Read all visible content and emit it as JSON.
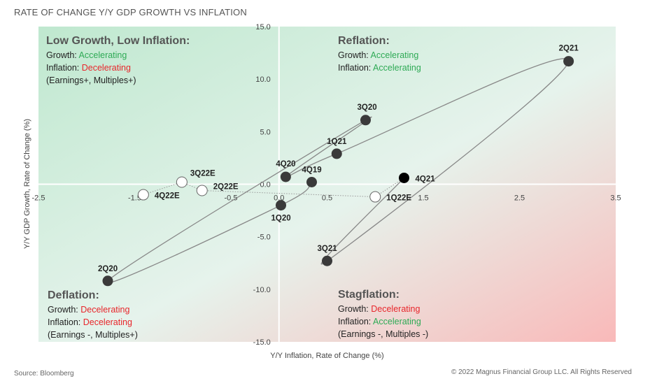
{
  "title": "RATE OF CHANGE Y/Y GDP GROWTH VS INFLATION",
  "source": "Source: Bloomberg",
  "copyright": "© 2022 Magnus Financial Group LLC. All Rights Reserved",
  "colors": {
    "growth_accel": "#2eaa55",
    "decel": "#e8262b",
    "bg_top_left": "#bfe8cf",
    "bg_bottom_right": "#f9b9b9"
  },
  "quadrants": [
    {
      "title": "Low Growth, Low Inflation:",
      "growth_label": "Growth: ",
      "growth": "Accelerating",
      "inflation_label": "Inflation: ",
      "inflation": "Decelerating",
      "note": "(Earnings+, Multiples+)"
    },
    {
      "title": "Reflation:",
      "growth_label": "Growth: ",
      "growth": "Accelerating",
      "inflation_label": "Inflation: ",
      "inflation": "Accelerating",
      "note": ""
    },
    {
      "title": "Deflation:",
      "growth_label": "Growth: ",
      "growth": "Decelerating",
      "inflation_label": "Inflation: ",
      "inflation": "Decelerating",
      "note": "(Earnings -, Multiples+)"
    },
    {
      "title": "Stagflation:",
      "growth_label": "Growth: ",
      "growth": "Decelerating",
      "inflation_label": "Inflation: ",
      "inflation": "Accelerating",
      "note": "(Earnings -, Multiples -)"
    }
  ],
  "chart_data": {
    "type": "scatter",
    "title": "RATE OF CHANGE Y/Y GDP GROWTH VS INFLATION",
    "xlabel": "Y/Y Inflation, Rate of Change (%)",
    "ylabel": "Y/Y GDP Growth, Rate of Change (%)",
    "xlim": [
      -2.5,
      3.5
    ],
    "ylim": [
      -15,
      15
    ],
    "xticks": [
      "-2.5",
      "-1.5",
      "-0.5",
      "0.0",
      "0.5",
      "1.5",
      "2.5",
      "3.5"
    ],
    "xtick_values": [
      -2.5,
      -1.5,
      -0.5,
      0,
      0.5,
      1.5,
      2.5,
      3.5
    ],
    "yticks": [
      "15.0",
      "10.0",
      "5.0",
      "0.0",
      "-5.0",
      "-10.0",
      "-15.0"
    ],
    "ytick_values": [
      15,
      10,
      5,
      0,
      -5,
      -10,
      -15
    ],
    "points": [
      {
        "label": "4Q19",
        "x": 0.34,
        "y": 0.2,
        "kind": "actual"
      },
      {
        "label": "1Q20",
        "x": 0.02,
        "y": -2.0,
        "kind": "actual"
      },
      {
        "label": "2Q20",
        "x": -1.78,
        "y": -9.2,
        "kind": "actual"
      },
      {
        "label": "3Q20",
        "x": 0.9,
        "y": 6.1,
        "kind": "actual"
      },
      {
        "label": "4Q20",
        "x": 0.07,
        "y": 0.7,
        "kind": "actual"
      },
      {
        "label": "1Q21",
        "x": 0.6,
        "y": 2.9,
        "kind": "actual"
      },
      {
        "label": "2Q21",
        "x": 3.01,
        "y": 11.7,
        "kind": "actual"
      },
      {
        "label": "3Q21",
        "x": 0.5,
        "y": -7.3,
        "kind": "actual"
      },
      {
        "label": "4Q21",
        "x": 1.3,
        "y": 0.6,
        "kind": "latest"
      },
      {
        "label": "1Q22E",
        "x": 1.0,
        "y": -1.2,
        "kind": "estimate"
      },
      {
        "label": "2Q22E",
        "x": -0.8,
        "y": -0.6,
        "kind": "estimate"
      },
      {
        "label": "3Q22E",
        "x": -1.01,
        "y": 0.2,
        "kind": "estimate"
      },
      {
        "label": "4Q22E",
        "x": -1.41,
        "y": -1.0,
        "kind": "estimate"
      }
    ]
  }
}
